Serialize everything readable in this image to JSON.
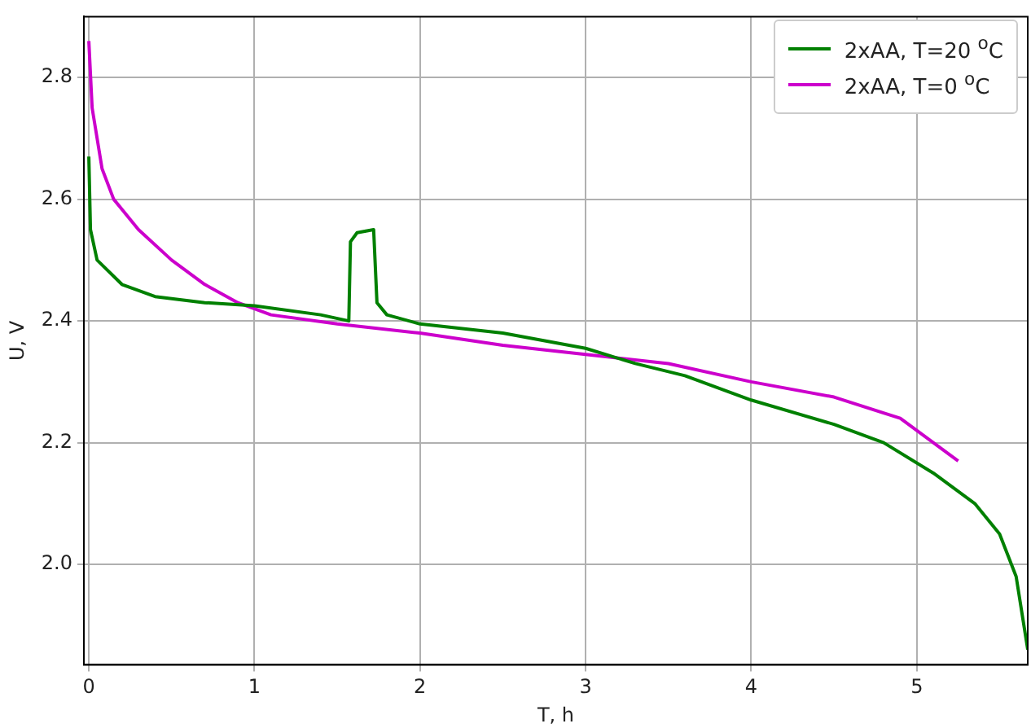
{
  "chart_data": {
    "type": "line",
    "xlabel": "T, h",
    "ylabel": "U, V",
    "xlim": [
      -0.03,
      5.67
    ],
    "ylim": [
      1.835,
      2.9
    ],
    "xticks": [
      0,
      1,
      2,
      3,
      4,
      5
    ],
    "yticks": [
      {
        "value": 2.0,
        "label": "2.0"
      },
      {
        "value": 2.2,
        "label": "2.2"
      },
      {
        "value": 2.4,
        "label": "2.4"
      },
      {
        "value": 2.6,
        "label": "2.6"
      },
      {
        "value": 2.8,
        "label": "2.8"
      }
    ],
    "grid": true,
    "legend": "top right",
    "marker": "none",
    "line_style": "solid",
    "series": [
      {
        "name": "2xAA, T=20 $^{o}$C",
        "color": "#008000",
        "x": [
          0,
          0.01,
          0.05,
          0.2,
          0.4,
          0.7,
          1.0,
          1.4,
          1.57,
          1.58,
          1.62,
          1.72,
          1.74,
          1.8,
          2.0,
          2.5,
          3.0,
          3.3,
          3.6,
          4.0,
          4.5,
          4.8,
          5.1,
          5.35,
          5.5,
          5.6,
          5.67
        ],
        "values": [
          2.67,
          2.55,
          2.5,
          2.46,
          2.44,
          2.43,
          2.425,
          2.41,
          2.4,
          2.53,
          2.545,
          2.55,
          2.43,
          2.41,
          2.395,
          2.38,
          2.355,
          2.33,
          2.31,
          2.27,
          2.23,
          2.2,
          2.15,
          2.1,
          2.05,
          1.98,
          1.86
        ]
      },
      {
        "name": "2xAA, T=0 $^{o}$C",
        "color": "#cc00cc",
        "x": [
          0,
          0.02,
          0.08,
          0.15,
          0.3,
          0.5,
          0.7,
          0.9,
          1.1,
          1.5,
          2.0,
          2.5,
          3.0,
          3.5,
          4.0,
          4.5,
          4.9,
          5.1,
          5.25
        ],
        "values": [
          2.86,
          2.75,
          2.65,
          2.6,
          2.55,
          2.5,
          2.46,
          2.43,
          2.41,
          2.395,
          2.38,
          2.36,
          2.345,
          2.33,
          2.3,
          2.275,
          2.24,
          2.2,
          2.17
        ]
      }
    ]
  }
}
